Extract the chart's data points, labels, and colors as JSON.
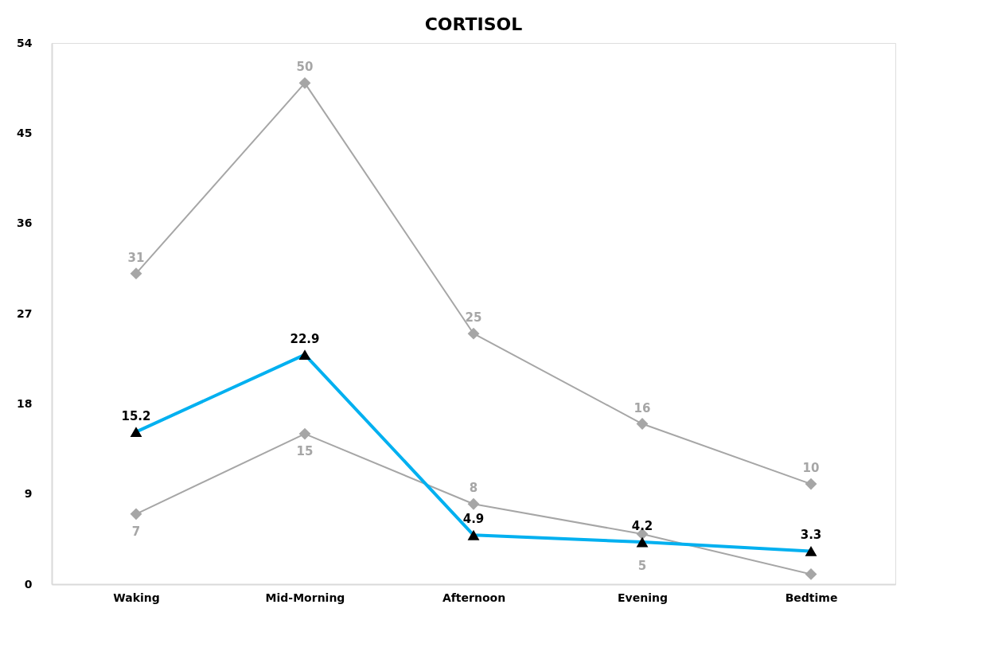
{
  "chart_data": {
    "type": "line",
    "title": "CORTISOL",
    "categories": [
      "Waking",
      "Mid-Morning",
      "Afternoon",
      "Evening",
      "Bedtime"
    ],
    "series": [
      {
        "color": "#a6a6a6",
        "marker": "diamond",
        "values": [
          31,
          50,
          25,
          16,
          10
        ],
        "value_labels": [
          "31",
          "50",
          "25",
          "16",
          "10"
        ]
      },
      {
        "color": "#a6a6a6",
        "marker": "diamond",
        "values": [
          7,
          15,
          8,
          5,
          1
        ],
        "value_labels": [
          "7",
          "15",
          "8",
          "5",
          null
        ]
      },
      {
        "color": "#00b0f0",
        "marker": "triangle",
        "values": [
          15.2,
          22.9,
          4.9,
          4.2,
          3.3
        ],
        "value_labels": [
          "15.2",
          "22.9",
          "4.9",
          "4.2",
          "3.3"
        ]
      }
    ],
    "ylim": [
      0,
      54
    ],
    "yticks": [
      0,
      9,
      18,
      27,
      36,
      45,
      54
    ],
    "grid": false
  }
}
